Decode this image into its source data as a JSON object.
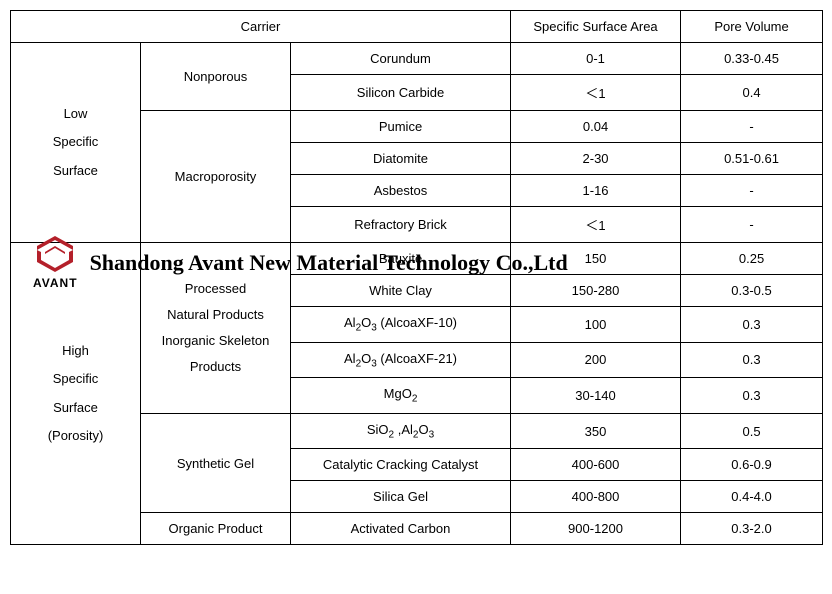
{
  "headers": {
    "carrier": "Carrier",
    "ssa": "Specific Surface Area",
    "pv": "Pore Volume"
  },
  "groupA": {
    "low": "Low\nSpecific\nSurface",
    "high": "High\nSpecific\nSurface\n(Porosity)"
  },
  "groupB": {
    "nonporous": "Nonporous",
    "macro": "Macroporosity",
    "processed": "Processed\nNatural Products\nInorganic Skeleton\nProducts",
    "synth": "Synthetic Gel",
    "organic": "Organic Product"
  },
  "rows": [
    {
      "carrier": "Corundum",
      "ssa": "0-1",
      "pv": "0.33-0.45"
    },
    {
      "carrier": "Silicon Carbide",
      "ssa": "＜1",
      "pv": "0.4"
    },
    {
      "carrier": "Pumice",
      "ssa": "0.04",
      "pv": "-"
    },
    {
      "carrier": "Diatomite",
      "ssa": "2-30",
      "pv": "0.51-0.61"
    },
    {
      "carrier": "Asbestos",
      "ssa": "1-16",
      "pv": "-"
    },
    {
      "carrier": "Refractory Brick",
      "ssa": "＜1",
      "pv": "-"
    },
    {
      "carrier": "Bauxite",
      "ssa": "150",
      "pv": "0.25"
    },
    {
      "carrier": "White Clay",
      "ssa": "150-280",
      "pv": "0.3-0.5"
    },
    {
      "carrier_html": "Al<sub>2</sub>O<sub>3</sub> (AlcoaXF-10)",
      "ssa": "100",
      "pv": "0.3"
    },
    {
      "carrier_html": "Al<sub>2</sub>O<sub>3</sub> (AlcoaXF-21)",
      "ssa": "200",
      "pv": "0.3"
    },
    {
      "carrier_html": "MgO<sub>2</sub>",
      "ssa": "30-140",
      "pv": "0.3"
    },
    {
      "carrier_html": "SiO<sub>2</sub> ,Al<sub>2</sub>O<sub>3</sub>",
      "ssa": "350",
      "pv": "0.5"
    },
    {
      "carrier": "Catalytic Cracking Catalyst",
      "ssa": "400-600",
      "pv": "0.6-0.9"
    },
    {
      "carrier": "Silica Gel",
      "ssa": "400-800",
      "pv": "0.4-4.0"
    },
    {
      "carrier": "Activated Carbon",
      "ssa": "900-1200",
      "pv": "0.3-2.0"
    }
  ],
  "watermark": {
    "logo_text": "AVANT",
    "logo_color": "#b4202a",
    "company": "Shandong Avant New Material Technology Co.,Ltd"
  }
}
